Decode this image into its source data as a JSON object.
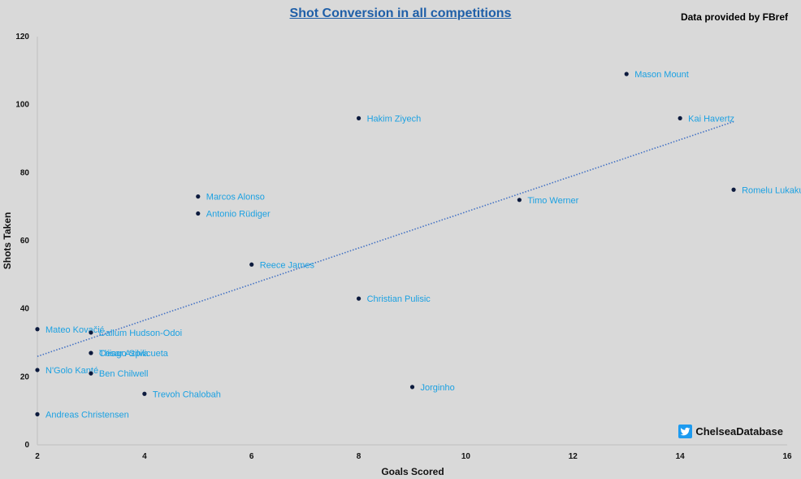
{
  "title": "Shot Conversion in all competitions",
  "source": "Data provided by FBref",
  "brand": {
    "handle": "ChelseaDatabase",
    "icon": "twitter-bird-icon"
  },
  "colors": {
    "points": "#0d1b3e",
    "labels": "#1ba1e2",
    "trendline": "#4472c4",
    "title": "#1f5fa8",
    "background": "#d9d9d9"
  },
  "chart_data": {
    "type": "scatter",
    "title": "Shot Conversion in all competitions",
    "xlabel": "Goals Scored",
    "ylabel": "Shots Taken",
    "xlim": [
      2,
      16
    ],
    "ylim": [
      0,
      120
    ],
    "xticks": [
      2,
      4,
      6,
      8,
      10,
      12,
      14,
      16
    ],
    "yticks": [
      0,
      20,
      40,
      60,
      80,
      100,
      120
    ],
    "grid": false,
    "legend": "none",
    "trendline": {
      "type": "linear",
      "x": [
        2,
        15
      ],
      "y": [
        26,
        95
      ]
    },
    "points": [
      {
        "label": "Mason Mount",
        "x": 13,
        "y": 109
      },
      {
        "label": "Kai Havertz",
        "x": 14,
        "y": 96
      },
      {
        "label": "Hakim Ziyech",
        "x": 8,
        "y": 96
      },
      {
        "label": "Romelu Lukaku",
        "x": 15,
        "y": 75
      },
      {
        "label": "Marcos Alonso",
        "x": 5,
        "y": 73
      },
      {
        "label": "Timo Werner",
        "x": 11,
        "y": 72
      },
      {
        "label": "Antonio Rüdiger",
        "x": 5,
        "y": 68
      },
      {
        "label": "Reece James",
        "x": 6,
        "y": 53
      },
      {
        "label": "Christian Pulisic",
        "x": 8,
        "y": 43
      },
      {
        "label": "Mateo Kovačić",
        "x": 2,
        "y": 34
      },
      {
        "label": "Callum Hudson-Odoi",
        "x": 3,
        "y": 33
      },
      {
        "label": "César Azpilicueta",
        "x": 3,
        "y": 27
      },
      {
        "label": "Thiago Silva",
        "x": 3,
        "y": 27
      },
      {
        "label": "N'Golo Kanté",
        "x": 2,
        "y": 22
      },
      {
        "label": "Ben Chilwell",
        "x": 3,
        "y": 21
      },
      {
        "label": "Jorginho",
        "x": 9,
        "y": 17
      },
      {
        "label": "Trevoh Chalobah",
        "x": 4,
        "y": 15
      },
      {
        "label": "Andreas Christensen",
        "x": 2,
        "y": 9
      }
    ]
  }
}
